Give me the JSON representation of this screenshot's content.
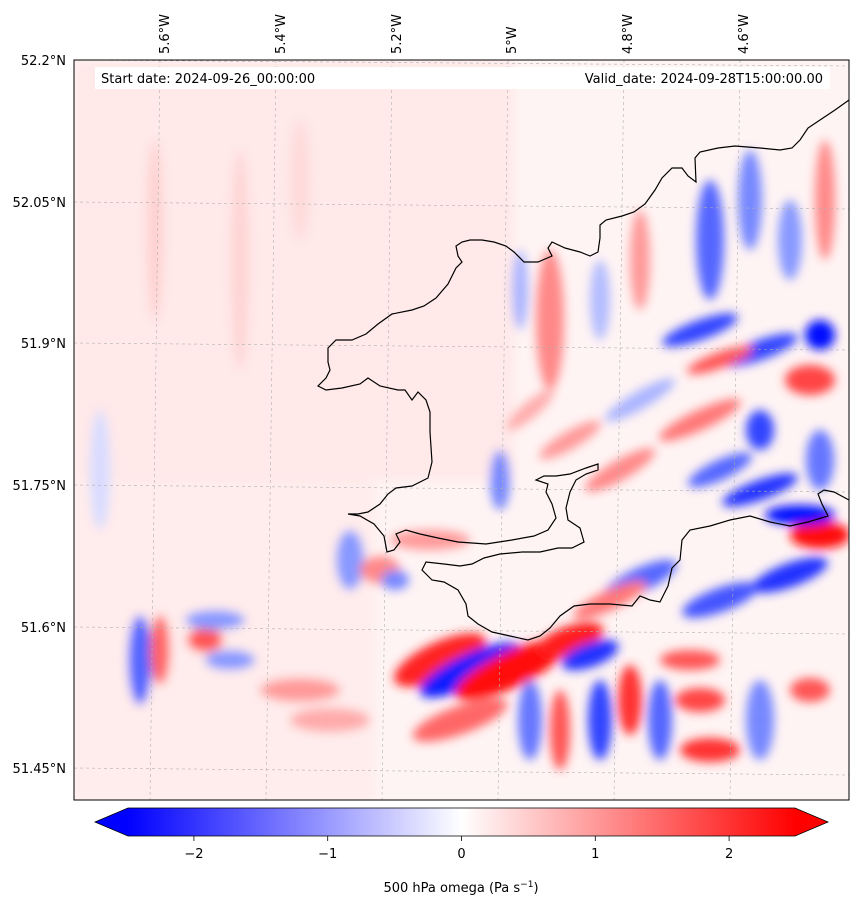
{
  "header": {
    "start_date": "Start date: 2024-09-26_00:00:00",
    "valid_date": "Valid_date: 2024-09-28T15:00:00.00"
  },
  "longitude_labels": [
    "5.6°W",
    "5.4°W",
    "5.2°W",
    "5°W",
    "4.8°W",
    "4.6°W"
  ],
  "latitude_labels": [
    "52.2°N",
    "52.05°N",
    "51.9°N",
    "51.75°N",
    "51.6°N",
    "51.45°N"
  ],
  "colorbar": {
    "label_main": "500 hPa omega (Pa s",
    "label_exp": "−1",
    "label_close": ")",
    "ticks": [
      {
        "value": -2,
        "text": "−2"
      },
      {
        "value": -1,
        "text": "−1"
      },
      {
        "value": 0,
        "text": "0"
      },
      {
        "value": 1,
        "text": "1"
      },
      {
        "value": 2,
        "text": "2"
      }
    ],
    "range": [
      -2.5,
      2.5
    ],
    "colormap": "bwr",
    "low_color": "#0000ff",
    "mid_color": "#ffffff",
    "high_color": "#ff0000"
  },
  "colors": {
    "coastline": "#000000",
    "gridline": "#b0b0b0"
  }
}
